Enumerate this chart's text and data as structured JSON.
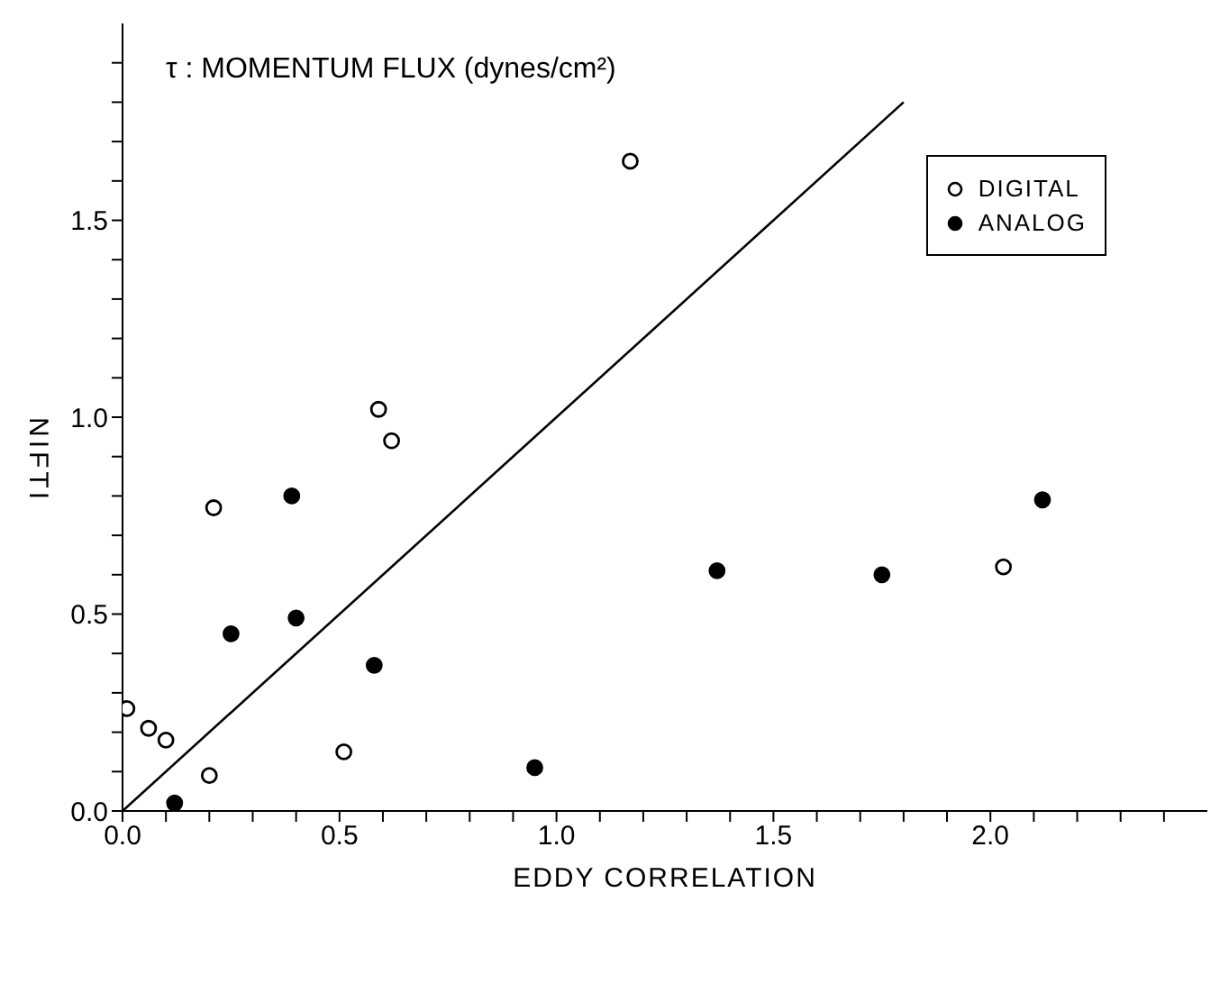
{
  "chart_data": {
    "type": "scatter",
    "title": "τ : MOMENTUM FLUX (dynes/cm²)",
    "xlabel": "EDDY CORRELATION",
    "ylabel": "NIFTI",
    "xlim": [
      0,
      2.5
    ],
    "ylim": [
      0,
      2.0
    ],
    "xticks": [
      {
        "value": 0,
        "label": "0.0"
      },
      {
        "value": 0.1,
        "label": null
      },
      {
        "value": 0.2,
        "label": null
      },
      {
        "value": 0.3,
        "label": null
      },
      {
        "value": 0.4,
        "label": null
      },
      {
        "value": 0.5,
        "label": "0.5"
      },
      {
        "value": 0.6,
        "label": null
      },
      {
        "value": 0.7,
        "label": null
      },
      {
        "value": 0.8,
        "label": null
      },
      {
        "value": 0.9,
        "label": null
      },
      {
        "value": 1,
        "label": "1.0"
      },
      {
        "value": 1.1,
        "label": null
      },
      {
        "value": 1.2,
        "label": null
      },
      {
        "value": 1.3,
        "label": null
      },
      {
        "value": 1.4,
        "label": null
      },
      {
        "value": 1.5,
        "label": "1.5"
      },
      {
        "value": 1.6,
        "label": null
      },
      {
        "value": 1.7,
        "label": null
      },
      {
        "value": 1.8,
        "label": null
      },
      {
        "value": 1.9,
        "label": null
      },
      {
        "value": 2,
        "label": "2.0"
      },
      {
        "value": 2.1,
        "label": null
      },
      {
        "value": 2.2,
        "label": null
      },
      {
        "value": 2.3,
        "label": null
      },
      {
        "value": 2.4,
        "label": null
      }
    ],
    "yticks": [
      {
        "value": 0,
        "label": "0.0"
      },
      {
        "value": 0.1,
        "label": null
      },
      {
        "value": 0.2,
        "label": null
      },
      {
        "value": 0.3,
        "label": null
      },
      {
        "value": 0.4,
        "label": null
      },
      {
        "value": 0.5,
        "label": "0.5"
      },
      {
        "value": 0.6,
        "label": null
      },
      {
        "value": 0.7,
        "label": null
      },
      {
        "value": 0.8,
        "label": null
      },
      {
        "value": 0.9,
        "label": null
      },
      {
        "value": 1,
        "label": "1.0"
      },
      {
        "value": 1.1,
        "label": null
      },
      {
        "value": 1.2,
        "label": null
      },
      {
        "value": 1.3,
        "label": null
      },
      {
        "value": 1.4,
        "label": null
      },
      {
        "value": 1.5,
        "label": "1.5"
      },
      {
        "value": 1.6,
        "label": null
      },
      {
        "value": 1.7,
        "label": null
      },
      {
        "value": 1.8,
        "label": null
      },
      {
        "value": 1.9,
        "label": null
      }
    ],
    "legend": "top right",
    "marker": "circle",
    "series": [
      {
        "name": "DIGITAL",
        "color": "#ffffff",
        "x": [
          0.01,
          0.06,
          0.1,
          0.2,
          0.21,
          0.51,
          0.59,
          0.62,
          1.17,
          2.03
        ],
        "values": [
          0.26,
          0.21,
          0.18,
          0.09,
          0.77,
          0.15,
          1.02,
          0.94,
          1.65,
          0.62
        ]
      },
      {
        "name": "ANALOG",
        "color": "#000000",
        "x": [
          0.12,
          0.25,
          0.39,
          0.4,
          0.58,
          0.95,
          1.37,
          1.75,
          2.12
        ],
        "values": [
          0.02,
          0.45,
          0.8,
          0.49,
          0.37,
          0.11,
          0.61,
          0.6,
          0.79
        ]
      },
      {
        "type": "line",
        "color": "#000000",
        "marker": "none",
        "x": [
          0,
          1.8
        ],
        "values": [
          0,
          1.8
        ]
      }
    ]
  }
}
